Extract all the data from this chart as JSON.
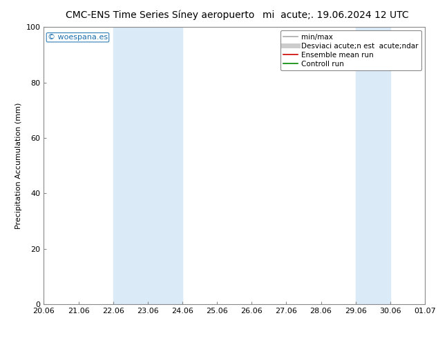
{
  "title_left": "CMC-ENS Time Series Síney aeropuerto",
  "title_right": "mi  acute;. 19.06.2024 12 UTC",
  "ylabel": "Precipitation Accumulation (mm)",
  "ylim": [
    0,
    100
  ],
  "yticks": [
    0,
    20,
    40,
    60,
    80,
    100
  ],
  "x_tick_labels": [
    "20.06",
    "21.06",
    "22.06",
    "23.06",
    "24.06",
    "25.06",
    "26.06",
    "27.06",
    "28.06",
    "29.06",
    "30.06",
    "01.07"
  ],
  "shaded_regions": [
    {
      "xstart": 2,
      "xend": 4
    },
    {
      "xstart": 9,
      "xend": 10
    }
  ],
  "shaded_color": "#daeaf7",
  "background_color": "#ffffff",
  "watermark_text": "woespana.es",
  "watermark_color": "#1a6faf",
  "legend_entries": [
    {
      "label": "min/max",
      "color": "#aaaaaa",
      "lw": 1.2
    },
    {
      "label": "Desviaci acute;n est  acute;ndar",
      "color": "#cccccc",
      "lw": 5
    },
    {
      "label": "Ensemble mean run",
      "color": "#cc0000",
      "lw": 1.2
    },
    {
      "label": "Controll run",
      "color": "#008800",
      "lw": 1.2
    }
  ],
  "grid_color": "#dddddd",
  "title_fontsize": 10,
  "axis_fontsize": 8,
  "tick_fontsize": 8,
  "legend_fontsize": 7.5
}
